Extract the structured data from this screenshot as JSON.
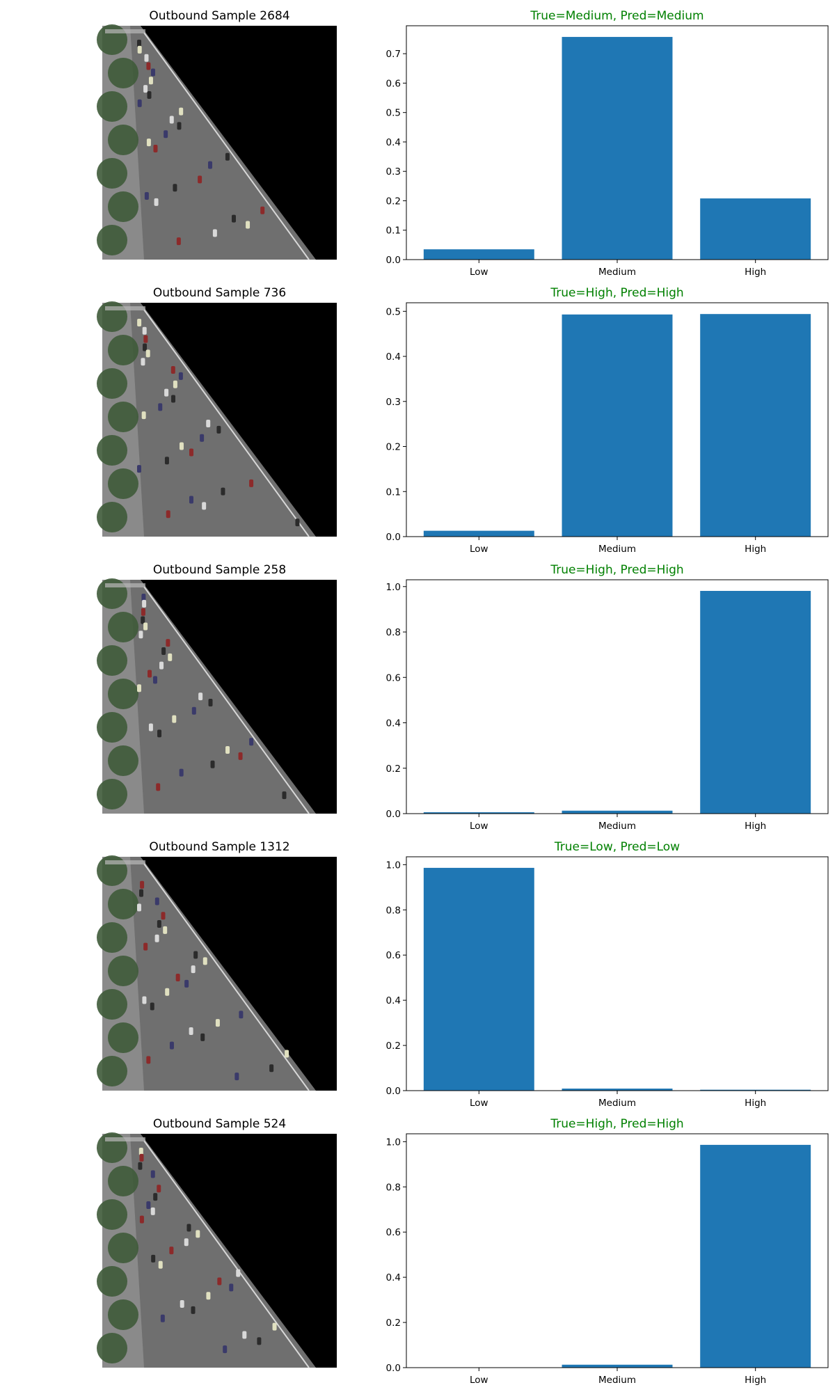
{
  "image_panel": {
    "colors": {
      "background": "#000000",
      "trees": "#3e5a38",
      "road": "#6f6f6f",
      "sidewalk": "#8a8a8a",
      "lane_marking": "#d8d8d8"
    }
  },
  "colors": {
    "bar": "#1f77b4",
    "title_correct": "#008000",
    "image_title": "#000000"
  },
  "chart_data": [
    {
      "type": "bar",
      "image_title": "Outbound Sample 2684",
      "title": "True=Medium, Pred=Medium",
      "categories": [
        "Low",
        "Medium",
        "High"
      ],
      "values": [
        0.035,
        0.757,
        0.208
      ],
      "yticks": [
        "0.0",
        "0.1",
        "0.2",
        "0.3",
        "0.4",
        "0.5",
        "0.6",
        "0.7"
      ],
      "ylim": [
        0,
        0.795
      ],
      "grid": false,
      "xlabel": "",
      "ylabel": ""
    },
    {
      "type": "bar",
      "image_title": "Outbound Sample 736",
      "title": "True=High, Pred=High",
      "categories": [
        "Low",
        "Medium",
        "High"
      ],
      "values": [
        0.013,
        0.493,
        0.494
      ],
      "yticks": [
        "0.0",
        "0.1",
        "0.2",
        "0.3",
        "0.4",
        "0.5"
      ],
      "ylim": [
        0,
        0.519
      ],
      "grid": false,
      "xlabel": "",
      "ylabel": ""
    },
    {
      "type": "bar",
      "image_title": "Outbound Sample 258",
      "title": "True=High, Pred=High",
      "categories": [
        "Low",
        "Medium",
        "High"
      ],
      "values": [
        0.006,
        0.013,
        0.981
      ],
      "yticks": [
        "0.0",
        "0.2",
        "0.4",
        "0.6",
        "0.8",
        "1.0"
      ],
      "ylim": [
        0,
        1.03
      ],
      "grid": false,
      "xlabel": "",
      "ylabel": ""
    },
    {
      "type": "bar",
      "image_title": "Outbound Sample 1312",
      "title": "True=Low, Pred=Low",
      "categories": [
        "Low",
        "Medium",
        "High"
      ],
      "values": [
        0.986,
        0.009,
        0.004
      ],
      "yticks": [
        "0.0",
        "0.2",
        "0.4",
        "0.6",
        "0.8",
        "1.0"
      ],
      "ylim": [
        0,
        1.035
      ],
      "grid": false,
      "xlabel": "",
      "ylabel": ""
    },
    {
      "type": "bar",
      "image_title": "Outbound Sample 524",
      "title": "True=High, Pred=High",
      "categories": [
        "Low",
        "Medium",
        "High"
      ],
      "values": [
        0.001,
        0.013,
        0.986
      ],
      "yticks": [
        "0.0",
        "0.2",
        "0.4",
        "0.6",
        "0.8",
        "1.0"
      ],
      "ylim": [
        0,
        1.035
      ],
      "grid": false,
      "xlabel": "",
      "ylabel": ""
    }
  ]
}
